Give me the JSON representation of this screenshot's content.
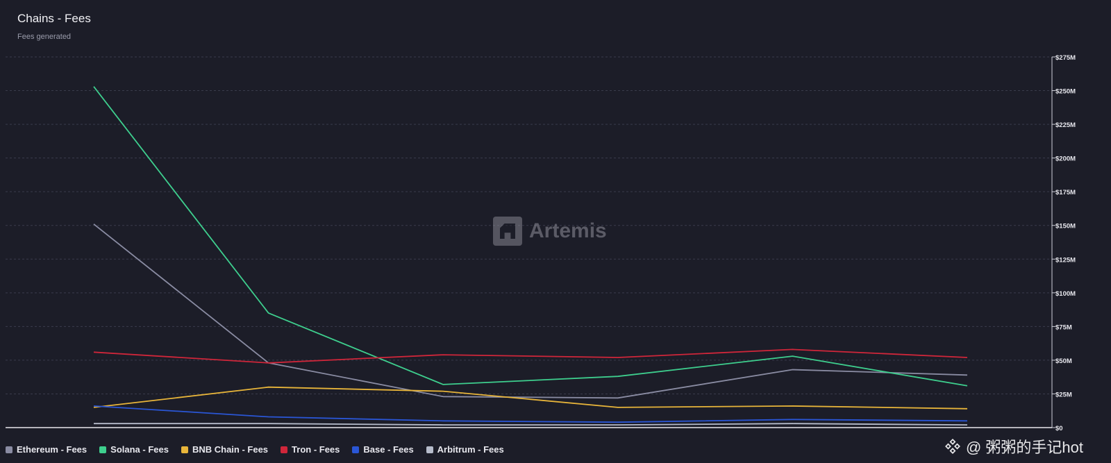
{
  "header": {
    "title": "Chains - Fees",
    "subtitle": "Fees generated"
  },
  "watermark": {
    "logo_text": "Artemis",
    "bottom_text": "@ 粥粥的手记hot"
  },
  "chart_data": {
    "type": "line",
    "title": "Chains - Fees",
    "subtitle": "Fees generated",
    "x": [
      0,
      1,
      2,
      3,
      4,
      5
    ],
    "ylim": [
      0,
      275
    ],
    "yticks": [
      0,
      25,
      50,
      75,
      100,
      125,
      150,
      175,
      200,
      225,
      250,
      275
    ],
    "ytick_labels": [
      "$0",
      "$25M",
      "$50M",
      "$75M",
      "$100M",
      "$125M",
      "$150M",
      "$175M",
      "$200M",
      "$225M",
      "$250M",
      "$275M"
    ],
    "grid": true,
    "legend_position": "bottom-left",
    "series": [
      {
        "name": "Ethereum - Fees",
        "color": "#8a8ca3",
        "values": [
          151,
          48,
          23,
          22,
          43,
          39
        ]
      },
      {
        "name": "Solana - Fees",
        "color": "#3ecf8e",
        "values": [
          253,
          85,
          32,
          38,
          53,
          31
        ]
      },
      {
        "name": "BNB Chain - Fees",
        "color": "#e8b53a",
        "values": [
          15,
          30,
          27,
          15,
          16,
          14
        ]
      },
      {
        "name": "Tron - Fees",
        "color": "#d0263a",
        "values": [
          56,
          48,
          54,
          52,
          58,
          52
        ]
      },
      {
        "name": "Base - Fees",
        "color": "#2a56d6",
        "values": [
          16,
          8,
          5,
          4,
          6,
          5
        ]
      },
      {
        "name": "Arbitrum - Fees",
        "color": "#b6bccb",
        "values": [
          3,
          3,
          2,
          2,
          3,
          2
        ]
      }
    ]
  }
}
